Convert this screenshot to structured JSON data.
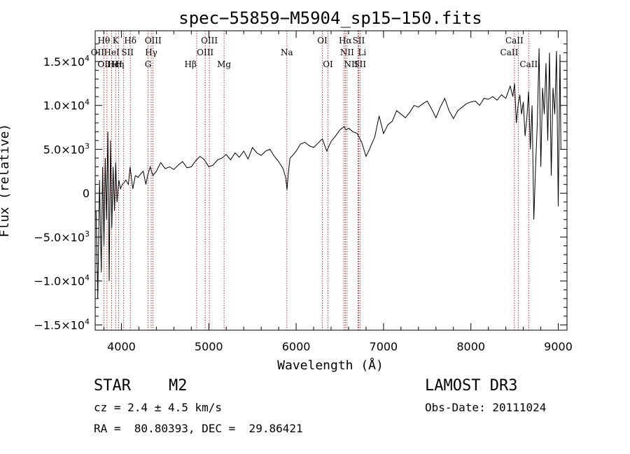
{
  "chart_data": {
    "type": "line",
    "title": "spec−55859−M5904_sp15−150.fits",
    "xlabel": "Wavelength (Å)",
    "ylabel": "Flux (relative)",
    "xlim": [
      3700,
      9100
    ],
    "ylim": [
      -15600,
      18500
    ],
    "grid": false,
    "x_ticks": [
      {
        "value": 4000,
        "label": "4000"
      },
      {
        "value": 5000,
        "label": "5000"
      },
      {
        "value": 6000,
        "label": "6000"
      },
      {
        "value": 7000,
        "label": "7000"
      },
      {
        "value": 8000,
        "label": "8000"
      },
      {
        "value": 9000,
        "label": "9000"
      }
    ],
    "y_ticks": [
      {
        "value": -15000,
        "mant": "−1.5×10",
        "exp": "4"
      },
      {
        "value": -10000,
        "mant": "−1.0×10",
        "exp": "4"
      },
      {
        "value": -5000,
        "mant": "−5.0×10",
        "exp": "3"
      },
      {
        "value": 0,
        "mant": "0",
        "exp": ""
      },
      {
        "value": 5000,
        "mant": "5.0×10",
        "exp": "3"
      },
      {
        "value": 10000,
        "mant": "1.0×10",
        "exp": "4"
      },
      {
        "value": 15000,
        "mant": "1.5×10",
        "exp": "4"
      }
    ],
    "series": [
      {
        "x": [
          3710,
          3730,
          3750,
          3770,
          3785,
          3800,
          3815,
          3830,
          3845,
          3860,
          3875,
          3890,
          3905,
          3920,
          3935,
          3950,
          3970,
          3990,
          4010,
          4030,
          4050,
          4080,
          4100,
          4130,
          4160,
          4190,
          4220,
          4250,
          4280,
          4300,
          4330,
          4360,
          4400,
          4450,
          4500,
          4550,
          4600,
          4650,
          4700,
          4750,
          4800,
          4850,
          4900,
          4950,
          5000,
          5050,
          5100,
          5150,
          5200,
          5250,
          5300,
          5350,
          5400,
          5450,
          5500,
          5550,
          5600,
          5650,
          5700,
          5750,
          5800,
          5850,
          5880,
          5895,
          5910,
          5930,
          5960,
          6000,
          6050,
          6100,
          6150,
          6200,
          6250,
          6300,
          6350,
          6400,
          6450,
          6500,
          6550,
          6570,
          6600,
          6650,
          6700,
          6750,
          6800,
          6830,
          6860,
          6900,
          6950,
          7000,
          7050,
          7100,
          7150,
          7200,
          7250,
          7300,
          7350,
          7400,
          7450,
          7500,
          7550,
          7600,
          7650,
          7700,
          7750,
          7800,
          7850,
          7900,
          7950,
          8000,
          8050,
          8100,
          8150,
          8200,
          8250,
          8300,
          8350,
          8400,
          8450,
          8480,
          8500,
          8520,
          8540,
          8560,
          8580,
          8600,
          8620,
          8640,
          8660,
          8680,
          8700,
          8720,
          8740,
          8760,
          8780,
          8800,
          8820,
          8840,
          8860,
          8880,
          8900,
          8920,
          8940,
          8960,
          8980,
          9000,
          9010,
          9020,
          9030
        ],
        "y": [
          -2000,
          -12000,
          1500,
          -9000,
          3000,
          -6000,
          4000,
          -3000,
          7000,
          -10000,
          6000,
          -4000,
          3000,
          -2000,
          3500,
          -1000,
          1500,
          500,
          1000,
          1200,
          1500,
          1000,
          3000,
          500,
          2000,
          1800,
          2200,
          2500,
          1000,
          2000,
          3000,
          2000,
          2500,
          3500,
          2800,
          3000,
          2700,
          3200,
          3600,
          2900,
          3000,
          3700,
          4200,
          3800,
          3000,
          3200,
          3800,
          4000,
          4400,
          3800,
          4600,
          4100,
          4800,
          3900,
          5200,
          4600,
          4300,
          4800,
          5000,
          4200,
          3600,
          2800,
          1800,
          400,
          2200,
          4000,
          4300,
          4800,
          5600,
          5800,
          5400,
          5200,
          5700,
          6200,
          4800,
          5900,
          6500,
          7200,
          7600,
          7200,
          7400,
          7000,
          6800,
          5800,
          4200,
          4800,
          5500,
          6400,
          8800,
          6800,
          7800,
          8200,
          9400,
          9000,
          8600,
          9200,
          10000,
          9800,
          10200,
          10500,
          9600,
          8600,
          9800,
          10800,
          9400,
          8500,
          9400,
          9800,
          10200,
          10400,
          10500,
          10000,
          10800,
          10700,
          11000,
          10600,
          11200,
          10800,
          12200,
          11000,
          12500,
          8000,
          10000,
          11200,
          9000,
          10400,
          6500,
          8500,
          11600,
          5000,
          10000,
          -3000,
          3000,
          8000,
          16500,
          3000,
          12000,
          9000,
          14800,
          6000,
          16000,
          2000,
          12000,
          9000,
          16200,
          -1500,
          8000,
          15800,
          5000
        ]
      }
    ],
    "lines": [
      {
        "x": 3799,
        "upper": "",
        "lower": ""
      },
      {
        "x": 3835,
        "upper": "",
        "lower": ""
      },
      {
        "x": 3889,
        "upper": "",
        "lower": ""
      },
      {
        "x": 3934,
        "upper": "",
        "lower": ""
      },
      {
        "x": 3969,
        "upper": "",
        "lower": ""
      },
      {
        "x": 4026,
        "upper": "",
        "lower": ""
      },
      {
        "x": 4102,
        "upper": "",
        "lower": ""
      },
      {
        "x": 4305,
        "upper": "",
        "lower": ""
      },
      {
        "x": 4341,
        "upper": "",
        "lower": ""
      },
      {
        "x": 4363,
        "upper": "",
        "lower": ""
      },
      {
        "x": 4861,
        "upper": "",
        "lower": ""
      },
      {
        "x": 4959,
        "upper": "",
        "lower": ""
      },
      {
        "x": 5007,
        "upper": "",
        "lower": ""
      },
      {
        "x": 5175,
        "upper": "",
        "lower": ""
      },
      {
        "x": 5894,
        "upper": "",
        "lower": ""
      },
      {
        "x": 6300,
        "upper": "",
        "lower": ""
      },
      {
        "x": 6364,
        "upper": "",
        "lower": ""
      },
      {
        "x": 6548,
        "upper": "",
        "lower": ""
      },
      {
        "x": 6563,
        "upper": "",
        "lower": ""
      },
      {
        "x": 6583,
        "upper": "",
        "lower": ""
      },
      {
        "x": 6708,
        "upper": "",
        "lower": ""
      },
      {
        "x": 6716,
        "upper": "",
        "lower": ""
      },
      {
        "x": 6731,
        "upper": "",
        "lower": ""
      },
      {
        "x": 8498,
        "upper": "",
        "lower": ""
      },
      {
        "x": 8542,
        "upper": "",
        "lower": ""
      },
      {
        "x": 8662,
        "upper": "",
        "lower": ""
      }
    ],
    "line_labels": [
      {
        "text": "Hθ",
        "row": 0,
        "x": 3799,
        "align": "middle"
      },
      {
        "text": "K",
        "row": 0,
        "x": 3934,
        "align": "middle"
      },
      {
        "text": "Hδ",
        "row": 0,
        "x": 4102,
        "align": "middle"
      },
      {
        "text": "OIII",
        "row": 0,
        "x": 4363,
        "align": "middle"
      },
      {
        "text": "OIII",
        "row": 0,
        "x": 5007,
        "align": "middle"
      },
      {
        "text": "OI",
        "row": 0,
        "x": 6300,
        "align": "middle"
      },
      {
        "text": "Hα",
        "row": 0,
        "x": 6563,
        "align": "middle"
      },
      {
        "text": "SII",
        "row": 0,
        "x": 6716,
        "align": "middle"
      },
      {
        "text": "CaII",
        "row": 0,
        "x": 8498,
        "align": "middle"
      },
      {
        "text": "OII",
        "row": 1,
        "x": 3727,
        "align": "middle"
      },
      {
        "text": "HeI",
        "row": 1,
        "x": 3889,
        "align": "middle"
      },
      {
        "text": "SII",
        "row": 1,
        "x": 4070,
        "align": "middle"
      },
      {
        "text": "Hγ",
        "row": 1,
        "x": 4341,
        "align": "middle"
      },
      {
        "text": "OIII",
        "row": 1,
        "x": 4959,
        "align": "middle"
      },
      {
        "text": "Na",
        "row": 1,
        "x": 5894,
        "align": "middle"
      },
      {
        "text": "NII",
        "row": 1,
        "x": 6583,
        "align": "middle"
      },
      {
        "text": "Li",
        "row": 1,
        "x": 6708,
        "align": "start"
      },
      {
        "text": "CaII",
        "row": 1,
        "x": 8542,
        "align": "end"
      },
      {
        "text": "OII",
        "row": 2,
        "x": 3727,
        "align": "start"
      },
      {
        "text": "Hϵ",
        "row": 2,
        "x": 3835,
        "align": "start"
      },
      {
        "text": "Hη",
        "row": 2,
        "x": 3889,
        "align": "start"
      },
      {
        "text": "H",
        "row": 2,
        "x": 3969,
        "align": "middle"
      },
      {
        "text": "G",
        "row": 2,
        "x": 4305,
        "align": "middle"
      },
      {
        "text": "Hβ",
        "row": 2,
        "x": 4861,
        "align": "end"
      },
      {
        "text": "Mg",
        "row": 2,
        "x": 5175,
        "align": "middle"
      },
      {
        "text": "OI",
        "row": 2,
        "x": 6364,
        "align": "middle"
      },
      {
        "text": "NII",
        "row": 2,
        "x": 6548,
        "align": "start"
      },
      {
        "text": "SII",
        "row": 2,
        "x": 6731,
        "align": "middle"
      },
      {
        "text": "CaII",
        "row": 2,
        "x": 8662,
        "align": "middle"
      }
    ]
  },
  "footer": {
    "object_class": "STAR",
    "subclass": "M2",
    "cz": "cz = 2.4 ± 4.5 km/s",
    "coords": "RA =  80.80393, DEC =  29.86421",
    "survey": "LAMOST DR3",
    "obs_date": "Obs-Date: 20111024"
  }
}
